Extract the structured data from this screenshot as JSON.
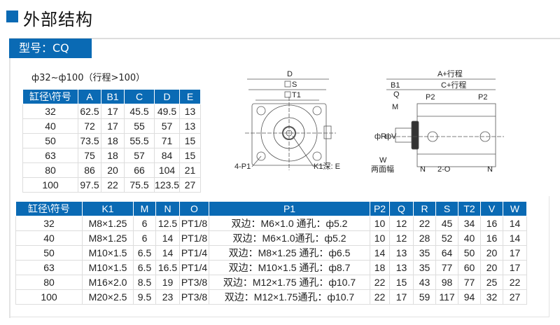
{
  "title": "外部结构",
  "model_label": "型号：CQ",
  "subtitle": "ф32~ф100（行程>100）",
  "table1": {
    "headers": [
      "缸径\\符号",
      "A",
      "B1",
      "C",
      "D",
      "E"
    ],
    "rows": [
      [
        "32",
        "62.5",
        "17",
        "45.5",
        "49.5",
        "13"
      ],
      [
        "40",
        "72",
        "17",
        "55",
        "57",
        "13"
      ],
      [
        "50",
        "73.5",
        "18",
        "55.5",
        "71",
        "15"
      ],
      [
        "63",
        "75",
        "18",
        "57",
        "84",
        "15"
      ],
      [
        "80",
        "86",
        "20",
        "66",
        "104",
        "21"
      ],
      [
        "100",
        "97.5",
        "22",
        "75.5",
        "123.5",
        "27"
      ]
    ]
  },
  "table2": {
    "headers": [
      "缸径\\符号",
      "K1",
      "M",
      "N",
      "O",
      "P1",
      "P2",
      "Q",
      "R",
      "S",
      "T2",
      "V",
      "W"
    ],
    "rows": [
      [
        "32",
        "M8×1.25",
        "6",
        "12.5",
        "PT1/8",
        "双边：M6×1.0 通孔：ф5.2",
        "10",
        "12",
        "22",
        "45",
        "34",
        "16",
        "14"
      ],
      [
        "40",
        "M8×1.25",
        "6",
        "14",
        "PT1/8",
        "双边：M6×1.0通孔：ф5.2",
        "10",
        "12",
        "28",
        "52",
        "40",
        "16",
        "14"
      ],
      [
        "50",
        "M10×1.5",
        "6.5",
        "14",
        "PT1/4",
        "双边：M8×1.25 通孔：ф6.5",
        "14",
        "13",
        "35",
        "64",
        "50",
        "20",
        "17"
      ],
      [
        "63",
        "M10×1.5",
        "6.5",
        "16.5",
        "PT1/4",
        "双边：M10×1.5 通孔：ф8.7",
        "18",
        "13",
        "35",
        "77",
        "60",
        "20",
        "17"
      ],
      [
        "80",
        "M16×2.0",
        "8.5",
        "19",
        "PT3/8",
        "双边：M12×1.75 通孔：ф10.7",
        "22",
        "15",
        "43",
        "98",
        "77",
        "25",
        "22"
      ],
      [
        "100",
        "M20×2.5",
        "9.5",
        "23",
        "PT3/8",
        "双边：M12×1.75通孔：ф10.7",
        "22",
        "17",
        "59",
        "117",
        "94",
        "32",
        "27"
      ]
    ]
  },
  "drawing": {
    "front": {
      "D": "D",
      "S": "S",
      "T1": "T1",
      "P1": "4-P1",
      "K1": "K1深: E"
    },
    "side": {
      "A": "A+行程",
      "C": "C+行程",
      "B1": "B1",
      "Q": "Q",
      "P2a": "P2",
      "P2b": "P2",
      "M": "M",
      "R": "фR",
      "V": "фV",
      "W": "W",
      "W2": "两面幅",
      "Na": "N",
      "Nb": "N",
      "O": "2-O"
    }
  },
  "colors": {
    "accent": "#0a6ab4"
  }
}
